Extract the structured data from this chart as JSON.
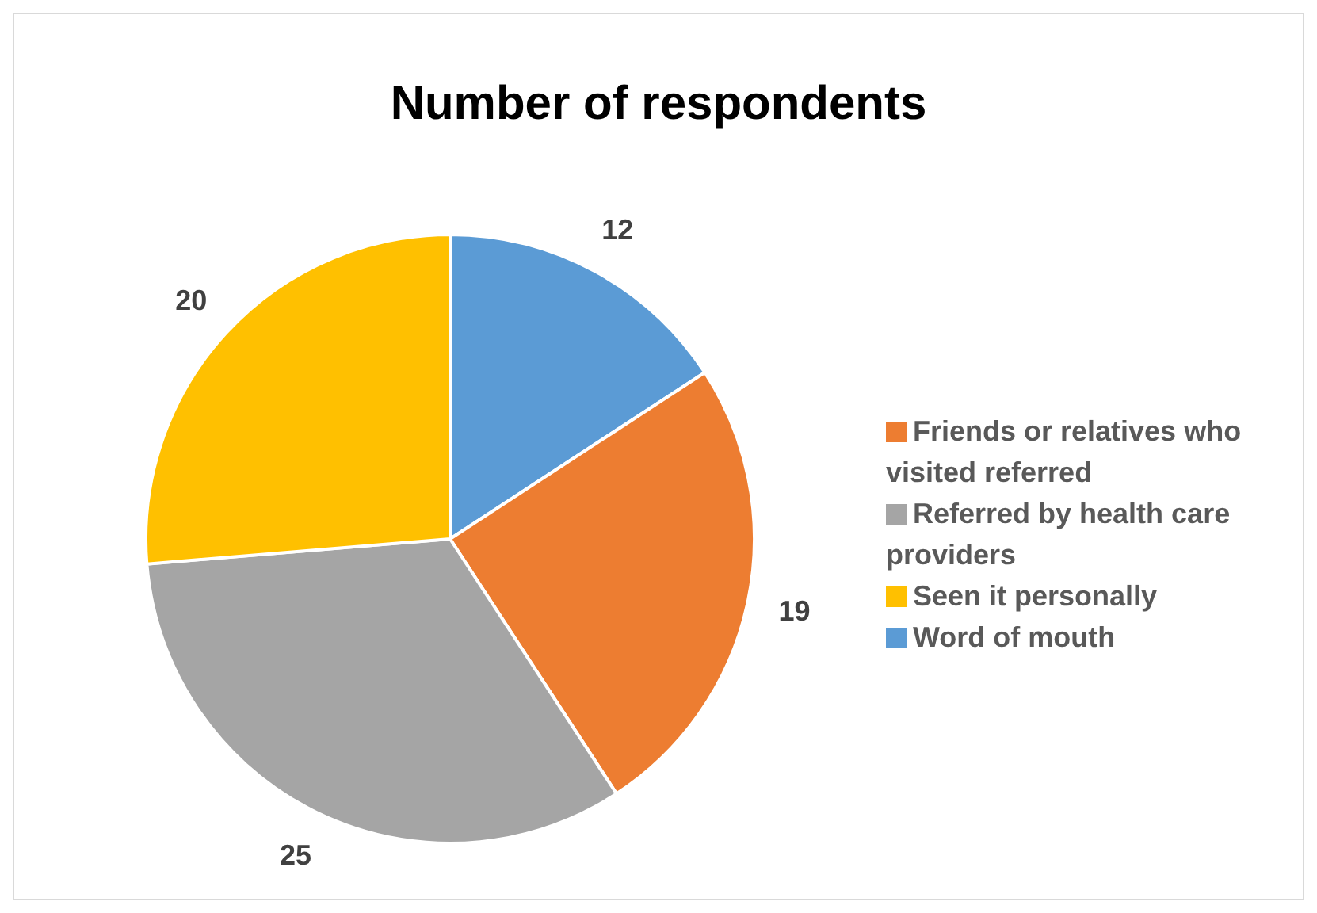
{
  "chart_data": {
    "type": "pie",
    "title": "Number of respondents",
    "categories": [
      "Word of mouth",
      "Friends or relatives who visited referred",
      "Referred by health care providers",
      "Seen it personally"
    ],
    "values": [
      12,
      19,
      25,
      20
    ],
    "colors": [
      "#5b9bd5",
      "#ed7d31",
      "#a5a5a5",
      "#ffc000"
    ],
    "legend": "right",
    "data_labels": true
  }
}
